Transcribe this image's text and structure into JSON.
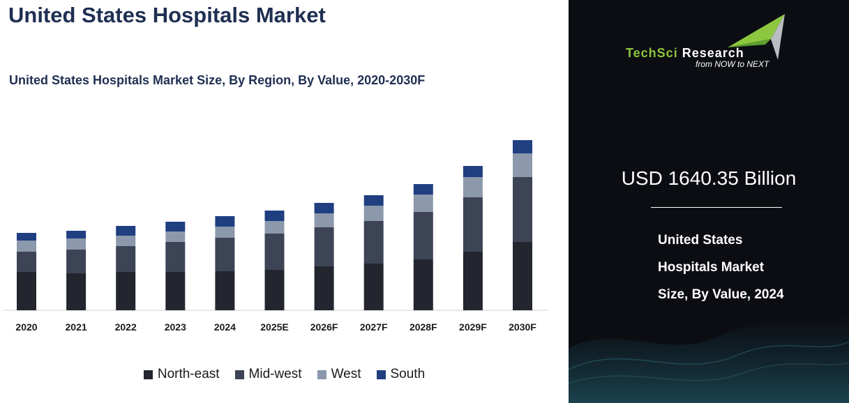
{
  "title": "United States Hospitals Market",
  "chart_data": {
    "type": "bar",
    "stacked": true,
    "title": "United States Hospitals Market Size, By Region, By Value, 2020-2030F",
    "categories": [
      "2020",
      "2021",
      "2022",
      "2023",
      "2024",
      "2025E",
      "2026F",
      "2027F",
      "2028F",
      "2029F",
      "2030F"
    ],
    "series": [
      {
        "name": "North-east",
        "color": "#23262f",
        "values": [
          55,
          53,
          55,
          55,
          56,
          58,
          63,
          67,
          73,
          84,
          98
        ]
      },
      {
        "name": "Mid-west",
        "color": "#3d4455",
        "values": [
          29,
          34,
          37,
          43,
          48,
          52,
          56,
          61,
          68,
          78,
          93
        ]
      },
      {
        "name": "West",
        "color": "#8c99ac",
        "values": [
          16,
          16,
          15,
          15,
          16,
          18,
          20,
          22,
          25,
          29,
          34
        ]
      },
      {
        "name": "South",
        "color": "#1f3f80",
        "values": [
          11,
          11,
          14,
          14,
          15,
          15,
          15,
          15,
          15,
          16,
          19
        ]
      }
    ],
    "legend_position": "bottom",
    "grid": false
  },
  "sidebar": {
    "logo_text_part1": "TechSci",
    "logo_text_part2": "Research",
    "tagline": "from NOW to NEXT",
    "value_label": "USD 1640.35 Billion",
    "caption_lines": [
      "United States",
      "Hospitals Market",
      "Size, By Value, 2024"
    ],
    "logo_green": "#8dc63f"
  }
}
